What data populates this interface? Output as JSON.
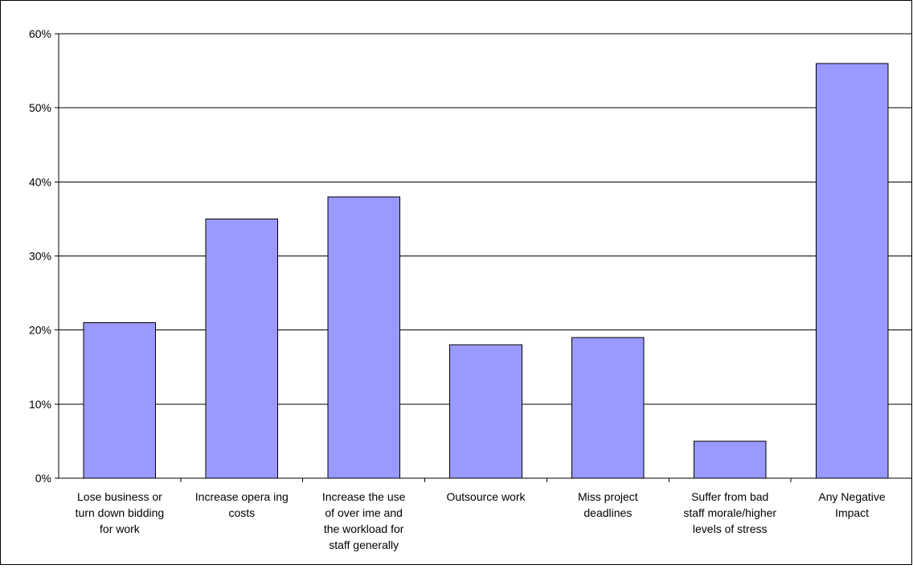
{
  "chart_data": {
    "type": "bar",
    "title": "",
    "xlabel": "",
    "ylabel": "",
    "ylim": [
      0,
      60
    ],
    "y_tick_labels": [
      "0%",
      "10%",
      "20%",
      "30%",
      "40%",
      "50%",
      "60%"
    ],
    "y_ticks": [
      0,
      10,
      20,
      30,
      40,
      50,
      60
    ],
    "grid": true,
    "categories": [
      [
        "Lose business or",
        "turn down bidding",
        "for work"
      ],
      [
        "Increase opera ing",
        "costs"
      ],
      [
        "Increase the use",
        "of over ime and",
        "the workload for",
        "staff generally"
      ],
      [
        "Outsource work"
      ],
      [
        "Miss project",
        "deadlines"
      ],
      [
        "Suffer from bad",
        "staff morale/higher",
        "levels of stress"
      ],
      [
        "Any Negative",
        "Impact"
      ]
    ],
    "values": [
      21,
      35,
      38,
      18,
      19,
      5,
      56
    ],
    "bar_color": "#9999ff",
    "bar_edge_color": "#000000"
  }
}
